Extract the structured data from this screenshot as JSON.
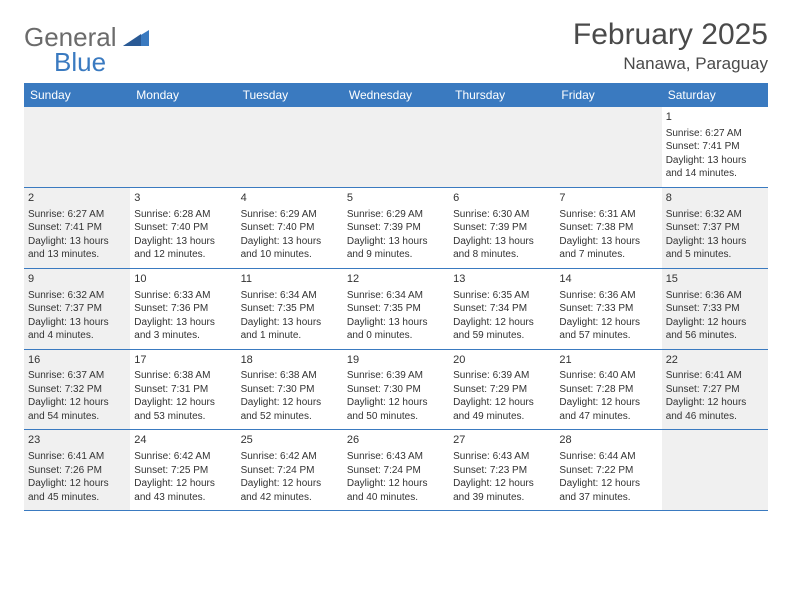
{
  "colors": {
    "header_bg": "#3a7ac0",
    "row_border": "#3a7ac0",
    "shade_bg": "#f0f0f0",
    "text": "#333333",
    "logo_gray": "#6b6b6b",
    "logo_blue": "#3a7ac0",
    "page_bg": "#ffffff"
  },
  "logo": {
    "word1": "General",
    "word2": "Blue"
  },
  "title": "February 2025",
  "location": "Nanawa, Paraguay",
  "weekdays": [
    "Sunday",
    "Monday",
    "Tuesday",
    "Wednesday",
    "Thursday",
    "Friday",
    "Saturday"
  ],
  "layout": {
    "columns": 7,
    "header_fontsize": 12,
    "title_fontsize": 30,
    "location_fontsize": 17,
    "cell_fontsize": 10,
    "daynum_fontsize": 11
  },
  "rows": [
    [
      {
        "day": "",
        "sunrise": "",
        "sunset": "",
        "daylight": "",
        "shade": true
      },
      {
        "day": "",
        "sunrise": "",
        "sunset": "",
        "daylight": "",
        "shade": true
      },
      {
        "day": "",
        "sunrise": "",
        "sunset": "",
        "daylight": "",
        "shade": true
      },
      {
        "day": "",
        "sunrise": "",
        "sunset": "",
        "daylight": "",
        "shade": true
      },
      {
        "day": "",
        "sunrise": "",
        "sunset": "",
        "daylight": "",
        "shade": true
      },
      {
        "day": "",
        "sunrise": "",
        "sunset": "",
        "daylight": "",
        "shade": true
      },
      {
        "day": "1",
        "sunrise": "Sunrise: 6:27 AM",
        "sunset": "Sunset: 7:41 PM",
        "daylight": "Daylight: 13 hours and 14 minutes.",
        "shade": false
      }
    ],
    [
      {
        "day": "2",
        "sunrise": "Sunrise: 6:27 AM",
        "sunset": "Sunset: 7:41 PM",
        "daylight": "Daylight: 13 hours and 13 minutes.",
        "shade": true
      },
      {
        "day": "3",
        "sunrise": "Sunrise: 6:28 AM",
        "sunset": "Sunset: 7:40 PM",
        "daylight": "Daylight: 13 hours and 12 minutes.",
        "shade": false
      },
      {
        "day": "4",
        "sunrise": "Sunrise: 6:29 AM",
        "sunset": "Sunset: 7:40 PM",
        "daylight": "Daylight: 13 hours and 10 minutes.",
        "shade": false
      },
      {
        "day": "5",
        "sunrise": "Sunrise: 6:29 AM",
        "sunset": "Sunset: 7:39 PM",
        "daylight": "Daylight: 13 hours and 9 minutes.",
        "shade": false
      },
      {
        "day": "6",
        "sunrise": "Sunrise: 6:30 AM",
        "sunset": "Sunset: 7:39 PM",
        "daylight": "Daylight: 13 hours and 8 minutes.",
        "shade": false
      },
      {
        "day": "7",
        "sunrise": "Sunrise: 6:31 AM",
        "sunset": "Sunset: 7:38 PM",
        "daylight": "Daylight: 13 hours and 7 minutes.",
        "shade": false
      },
      {
        "day": "8",
        "sunrise": "Sunrise: 6:32 AM",
        "sunset": "Sunset: 7:37 PM",
        "daylight": "Daylight: 13 hours and 5 minutes.",
        "shade": true
      }
    ],
    [
      {
        "day": "9",
        "sunrise": "Sunrise: 6:32 AM",
        "sunset": "Sunset: 7:37 PM",
        "daylight": "Daylight: 13 hours and 4 minutes.",
        "shade": true
      },
      {
        "day": "10",
        "sunrise": "Sunrise: 6:33 AM",
        "sunset": "Sunset: 7:36 PM",
        "daylight": "Daylight: 13 hours and 3 minutes.",
        "shade": false
      },
      {
        "day": "11",
        "sunrise": "Sunrise: 6:34 AM",
        "sunset": "Sunset: 7:35 PM",
        "daylight": "Daylight: 13 hours and 1 minute.",
        "shade": false
      },
      {
        "day": "12",
        "sunrise": "Sunrise: 6:34 AM",
        "sunset": "Sunset: 7:35 PM",
        "daylight": "Daylight: 13 hours and 0 minutes.",
        "shade": false
      },
      {
        "day": "13",
        "sunrise": "Sunrise: 6:35 AM",
        "sunset": "Sunset: 7:34 PM",
        "daylight": "Daylight: 12 hours and 59 minutes.",
        "shade": false
      },
      {
        "day": "14",
        "sunrise": "Sunrise: 6:36 AM",
        "sunset": "Sunset: 7:33 PM",
        "daylight": "Daylight: 12 hours and 57 minutes.",
        "shade": false
      },
      {
        "day": "15",
        "sunrise": "Sunrise: 6:36 AM",
        "sunset": "Sunset: 7:33 PM",
        "daylight": "Daylight: 12 hours and 56 minutes.",
        "shade": true
      }
    ],
    [
      {
        "day": "16",
        "sunrise": "Sunrise: 6:37 AM",
        "sunset": "Sunset: 7:32 PM",
        "daylight": "Daylight: 12 hours and 54 minutes.",
        "shade": true
      },
      {
        "day": "17",
        "sunrise": "Sunrise: 6:38 AM",
        "sunset": "Sunset: 7:31 PM",
        "daylight": "Daylight: 12 hours and 53 minutes.",
        "shade": false
      },
      {
        "day": "18",
        "sunrise": "Sunrise: 6:38 AM",
        "sunset": "Sunset: 7:30 PM",
        "daylight": "Daylight: 12 hours and 52 minutes.",
        "shade": false
      },
      {
        "day": "19",
        "sunrise": "Sunrise: 6:39 AM",
        "sunset": "Sunset: 7:30 PM",
        "daylight": "Daylight: 12 hours and 50 minutes.",
        "shade": false
      },
      {
        "day": "20",
        "sunrise": "Sunrise: 6:39 AM",
        "sunset": "Sunset: 7:29 PM",
        "daylight": "Daylight: 12 hours and 49 minutes.",
        "shade": false
      },
      {
        "day": "21",
        "sunrise": "Sunrise: 6:40 AM",
        "sunset": "Sunset: 7:28 PM",
        "daylight": "Daylight: 12 hours and 47 minutes.",
        "shade": false
      },
      {
        "day": "22",
        "sunrise": "Sunrise: 6:41 AM",
        "sunset": "Sunset: 7:27 PM",
        "daylight": "Daylight: 12 hours and 46 minutes.",
        "shade": true
      }
    ],
    [
      {
        "day": "23",
        "sunrise": "Sunrise: 6:41 AM",
        "sunset": "Sunset: 7:26 PM",
        "daylight": "Daylight: 12 hours and 45 minutes.",
        "shade": true
      },
      {
        "day": "24",
        "sunrise": "Sunrise: 6:42 AM",
        "sunset": "Sunset: 7:25 PM",
        "daylight": "Daylight: 12 hours and 43 minutes.",
        "shade": false
      },
      {
        "day": "25",
        "sunrise": "Sunrise: 6:42 AM",
        "sunset": "Sunset: 7:24 PM",
        "daylight": "Daylight: 12 hours and 42 minutes.",
        "shade": false
      },
      {
        "day": "26",
        "sunrise": "Sunrise: 6:43 AM",
        "sunset": "Sunset: 7:24 PM",
        "daylight": "Daylight: 12 hours and 40 minutes.",
        "shade": false
      },
      {
        "day": "27",
        "sunrise": "Sunrise: 6:43 AM",
        "sunset": "Sunset: 7:23 PM",
        "daylight": "Daylight: 12 hours and 39 minutes.",
        "shade": false
      },
      {
        "day": "28",
        "sunrise": "Sunrise: 6:44 AM",
        "sunset": "Sunset: 7:22 PM",
        "daylight": "Daylight: 12 hours and 37 minutes.",
        "shade": false
      },
      {
        "day": "",
        "sunrise": "",
        "sunset": "",
        "daylight": "",
        "shade": true
      }
    ]
  ]
}
